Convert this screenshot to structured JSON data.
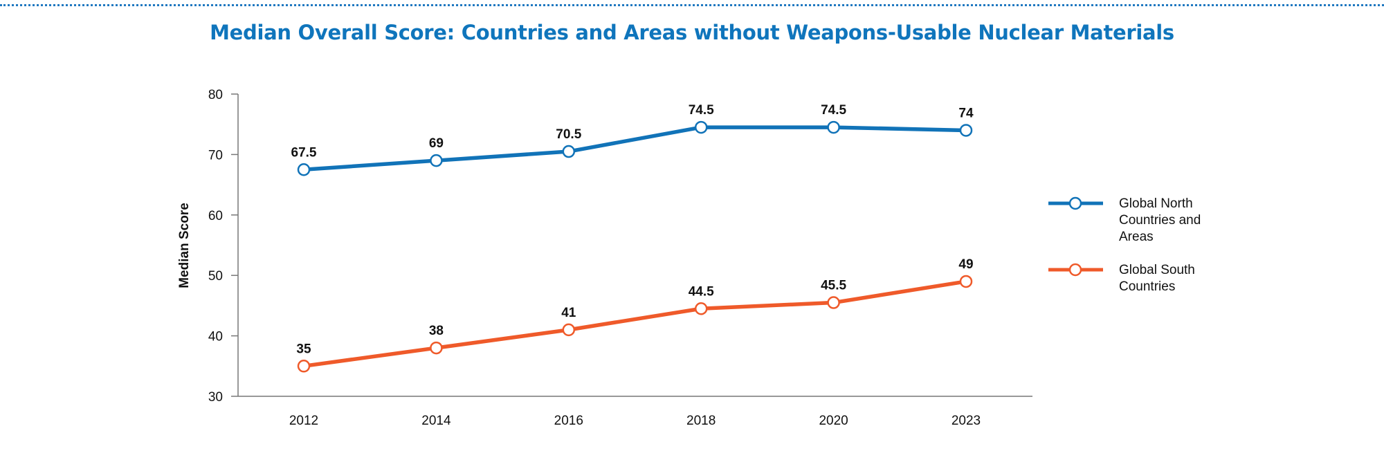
{
  "chart_data": {
    "type": "line",
    "title": "Median Overall Score: Countries and Areas without Weapons-Usable Nuclear Materials",
    "xlabel": "",
    "ylabel": "Median Score",
    "categories": [
      "2012",
      "2014",
      "2016",
      "2018",
      "2020",
      "2023"
    ],
    "ylim": [
      30,
      80
    ],
    "yticks": [
      "80",
      "70",
      "60",
      "50",
      "40",
      "30"
    ],
    "grid": false,
    "legend_position": "right",
    "series": [
      {
        "name_lines": [
          "Global North",
          "Countries and",
          "Areas"
        ],
        "color": "#1173b8",
        "values": [
          67.5,
          69,
          70.5,
          74.5,
          74.5,
          74
        ],
        "labels": [
          "67.5",
          "69",
          "70.5",
          "74.5",
          "74.5",
          "74"
        ]
      },
      {
        "name_lines": [
          "Global South",
          "Countries"
        ],
        "color": "#ef5a2a",
        "values": [
          35,
          38,
          41,
          44.5,
          45.5,
          49
        ],
        "labels": [
          "35",
          "38",
          "41",
          "44.5",
          "45.5",
          "49"
        ]
      }
    ]
  }
}
